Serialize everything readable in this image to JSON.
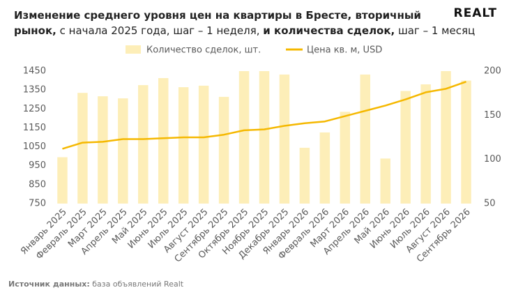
{
  "brand": "REALT",
  "chart_data": {
    "type": "combo",
    "title": [
      {
        "text": "Изменение среднего уровня цен на квартиры в Бресте, вторичный",
        "bold": true
      },
      {
        "text": "рынок,",
        "bold": true
      },
      {
        "text": " с начала 2025 года, шаг – 1 неделя, ",
        "bold": false
      },
      {
        "text": "и количества сделок,",
        "bold": true
      },
      {
        "text": " шаг – 1 месяц",
        "bold": false
      }
    ],
    "categories": [
      "Январь 2025",
      "Февраль 2025",
      "Март 2025",
      "Апрель 2025",
      "Май 2025",
      "Июнь 2025",
      "Июль 2025",
      "Август 2025",
      "Сентябрь 2025",
      "Октябрь 2025",
      "Ноябрь 2025",
      "Декабрь 2025",
      "Январь 2026",
      "Февраль 2026",
      "Март 2026",
      "Апрель 2026",
      "Май 2026",
      "Июнь 2026",
      "Июль 2026",
      "Август 2026",
      "Сентябрь 2026"
    ],
    "series": [
      {
        "name": "Количество сделок, шт.",
        "type": "bar",
        "color": "#fdeeb8",
        "values": [
          995,
          1335,
          1317,
          1306,
          1376,
          1413,
          1365,
          1373,
          1314,
          1450,
          1450,
          1432,
          1045,
          1126,
          1235,
          1432,
          988,
          1345,
          1380,
          1450,
          1400
        ]
      },
      {
        "name": "Цена кв. м, USD",
        "type": "line",
        "axis": "y2",
        "color": "#f5b800",
        "values": [
          112,
          119,
          120,
          123,
          123,
          124,
          125,
          125,
          128,
          133,
          134,
          138,
          141,
          143,
          149,
          155,
          161,
          168,
          176,
          180,
          188
        ]
      }
    ],
    "ylim": [
      750,
      1450
    ],
    "yticks": [
      750,
      850,
      950,
      1050,
      1150,
      1250,
      1350,
      1450
    ],
    "y2lim": [
      50,
      200
    ],
    "y2ticks": [
      50,
      100,
      150,
      200
    ],
    "legend": "top"
  },
  "source": [
    {
      "text": "Источник данных:",
      "bold": true
    },
    {
      "text": " база объявлений Realt",
      "bold": false
    }
  ]
}
